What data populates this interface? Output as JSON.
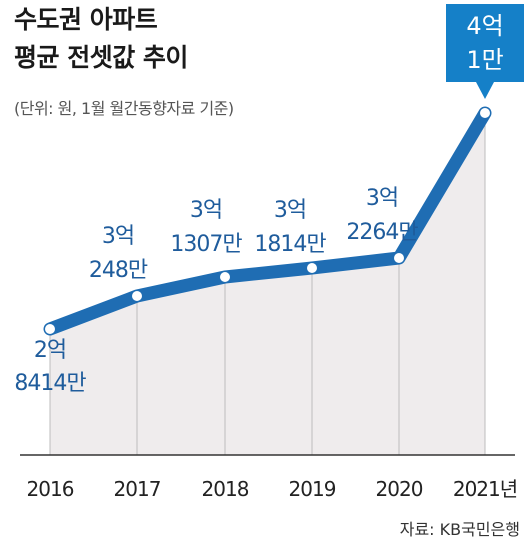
{
  "chart_data": {
    "type": "area",
    "title": [
      "수도권 아파트",
      "평균 전셋값 추이"
    ],
    "subtitle": "(단위: 원, 1월 월간동향자료 기준)",
    "source": "자료: KB국민은행",
    "categories": [
      "2016",
      "2017",
      "2018",
      "2019",
      "2020",
      "2021년"
    ],
    "values": [
      284140000,
      302480000,
      313070000,
      318140000,
      322640000,
      400010000
    ],
    "labels": [
      [
        "2억",
        "8414만"
      ],
      [
        "3억",
        "248만"
      ],
      [
        "3억",
        "1307만"
      ],
      [
        "3억",
        "1814만"
      ],
      [
        "3억",
        "2264만"
      ],
      [
        "4억",
        "1만"
      ]
    ],
    "ylim": [
      0,
      430000000
    ],
    "line_color": "#1f6db3",
    "area_color": "#efeced",
    "highlight_color": "#1580c8",
    "grid": false
  }
}
